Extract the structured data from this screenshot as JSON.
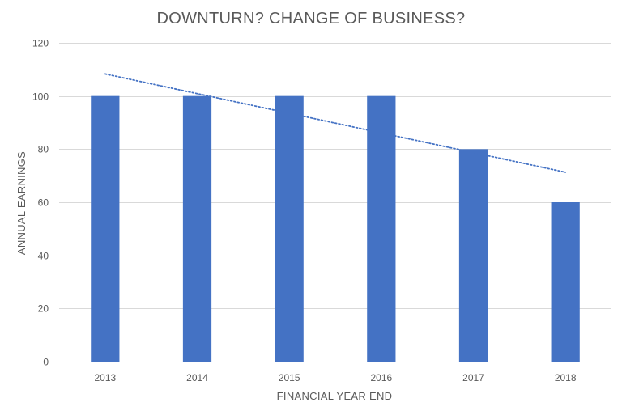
{
  "chart_data": {
    "type": "bar",
    "title": "DOWNTURN? CHANGE OF BUSINESS?",
    "xlabel": "FINANCIAL YEAR END",
    "ylabel": "ANNUAL EARNINGS",
    "categories": [
      "2013",
      "2014",
      "2015",
      "2016",
      "2017",
      "2018"
    ],
    "values": [
      100,
      100,
      100,
      100,
      80,
      60
    ],
    "ylim": [
      0,
      120
    ],
    "yticks": [
      "0",
      "20",
      "40",
      "60",
      "80",
      "100",
      "120"
    ],
    "grid": true,
    "legend": "none",
    "trendline": {
      "type": "linear",
      "style": "dotted",
      "start": 108.3,
      "end": 71.3
    },
    "bar_color": "#4472C4",
    "trend_color": "#4472C4",
    "grid_color": "#D9D9D9",
    "text_color": "#595959"
  }
}
